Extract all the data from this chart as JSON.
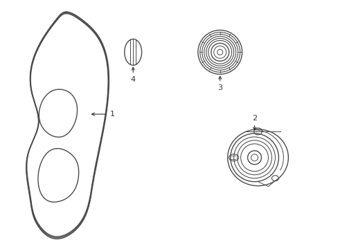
{
  "background_color": "#ffffff",
  "line_color": "#4a4a4a",
  "line_width": 1.0,
  "fig_width": 4.89,
  "fig_height": 3.6,
  "dpi": 100,
  "xlim": [
    0,
    4.89
  ],
  "ylim": [
    0,
    3.6
  ],
  "label_fontsize": 8,
  "label_color": "#333333"
}
